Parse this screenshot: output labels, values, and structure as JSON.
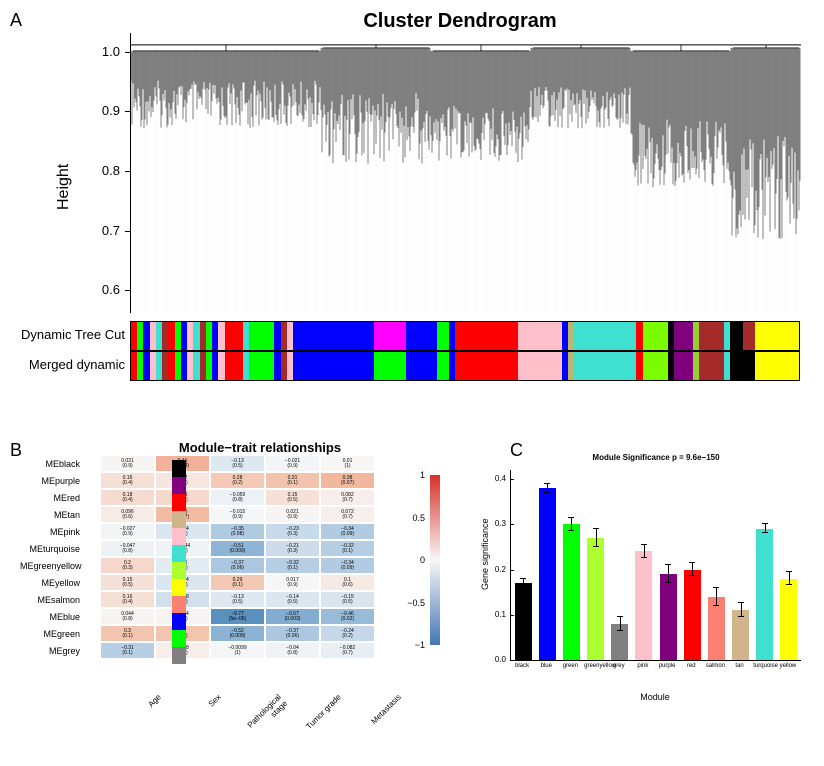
{
  "panelA": {
    "label": "A",
    "title": "Cluster Dendrogram",
    "y_axis_label": "Height",
    "y_ticks": [
      0.6,
      0.7,
      0.8,
      0.9,
      1.0
    ],
    "ylim": [
      0.55,
      1.02
    ],
    "band_labels": [
      "Dynamic Tree Cut",
      "Merged dynamic"
    ],
    "band1_segments": [
      {
        "w": 1,
        "c": "#ff0000"
      },
      {
        "w": 1,
        "c": "#00ff00"
      },
      {
        "w": 1,
        "c": "#0000ff"
      },
      {
        "w": 1,
        "c": "#ffc0cb"
      },
      {
        "w": 1,
        "c": "#40e0d0"
      },
      {
        "w": 1,
        "c": "#a52a2a"
      },
      {
        "w": 1,
        "c": "#ff0000"
      },
      {
        "w": 1,
        "c": "#00ff00"
      },
      {
        "w": 1,
        "c": "#0000ff"
      },
      {
        "w": 1,
        "c": "#ffc0cb"
      },
      {
        "w": 1,
        "c": "#40e0d0"
      },
      {
        "w": 1,
        "c": "#a52a2a"
      },
      {
        "w": 1,
        "c": "#00ff00"
      },
      {
        "w": 1,
        "c": "#0000ff"
      },
      {
        "w": 1,
        "c": "#ffc0cb"
      },
      {
        "w": 3,
        "c": "#ff0000"
      },
      {
        "w": 1,
        "c": "#40e0d0"
      },
      {
        "w": 4,
        "c": "#00ff00"
      },
      {
        "w": 1,
        "c": "#0000ff"
      },
      {
        "w": 1,
        "c": "#a52a2a"
      },
      {
        "w": 1,
        "c": "#ffc0cb"
      },
      {
        "w": 13,
        "c": "#0000ff"
      },
      {
        "w": 5,
        "c": "#ff00ff"
      },
      {
        "w": 5,
        "c": "#0000ff"
      },
      {
        "w": 2,
        "c": "#00ff00"
      },
      {
        "w": 1,
        "c": "#0000ff"
      },
      {
        "w": 10,
        "c": "#ff0000"
      },
      {
        "w": 7,
        "c": "#ffc0cb"
      },
      {
        "w": 1,
        "c": "#0000ff"
      },
      {
        "w": 1,
        "c": "#bdb76b"
      },
      {
        "w": 10,
        "c": "#40e0d0"
      },
      {
        "w": 1,
        "c": "#ff0000"
      },
      {
        "w": 4,
        "c": "#7cfc00"
      },
      {
        "w": 1,
        "c": "#000000"
      },
      {
        "w": 3,
        "c": "#800080"
      },
      {
        "w": 1,
        "c": "#9acd32"
      },
      {
        "w": 4,
        "c": "#a52a2a"
      },
      {
        "w": 1,
        "c": "#40e0d0"
      },
      {
        "w": 2,
        "c": "#000000"
      },
      {
        "w": 2,
        "c": "#a52a2a"
      },
      {
        "w": 7,
        "c": "#ffff00"
      }
    ],
    "band2_segments": [
      {
        "w": 1,
        "c": "#ff0000"
      },
      {
        "w": 1,
        "c": "#00ff00"
      },
      {
        "w": 1,
        "c": "#0000ff"
      },
      {
        "w": 1,
        "c": "#ffc0cb"
      },
      {
        "w": 1,
        "c": "#40e0d0"
      },
      {
        "w": 1,
        "c": "#a52a2a"
      },
      {
        "w": 1,
        "c": "#ff0000"
      },
      {
        "w": 1,
        "c": "#00ff00"
      },
      {
        "w": 1,
        "c": "#0000ff"
      },
      {
        "w": 1,
        "c": "#ffc0cb"
      },
      {
        "w": 1,
        "c": "#40e0d0"
      },
      {
        "w": 1,
        "c": "#a52a2a"
      },
      {
        "w": 1,
        "c": "#00ff00"
      },
      {
        "w": 1,
        "c": "#0000ff"
      },
      {
        "w": 1,
        "c": "#ffc0cb"
      },
      {
        "w": 3,
        "c": "#ff0000"
      },
      {
        "w": 1,
        "c": "#40e0d0"
      },
      {
        "w": 4,
        "c": "#00ff00"
      },
      {
        "w": 1,
        "c": "#0000ff"
      },
      {
        "w": 1,
        "c": "#a52a2a"
      },
      {
        "w": 1,
        "c": "#ffc0cb"
      },
      {
        "w": 13,
        "c": "#0000ff"
      },
      {
        "w": 5,
        "c": "#00ff00"
      },
      {
        "w": 5,
        "c": "#0000ff"
      },
      {
        "w": 2,
        "c": "#00ff00"
      },
      {
        "w": 1,
        "c": "#0000ff"
      },
      {
        "w": 10,
        "c": "#ff0000"
      },
      {
        "w": 7,
        "c": "#ffc0cb"
      },
      {
        "w": 1,
        "c": "#0000ff"
      },
      {
        "w": 1,
        "c": "#bdb76b"
      },
      {
        "w": 10,
        "c": "#40e0d0"
      },
      {
        "w": 1,
        "c": "#ff0000"
      },
      {
        "w": 4,
        "c": "#7cfc00"
      },
      {
        "w": 1,
        "c": "#000000"
      },
      {
        "w": 3,
        "c": "#800080"
      },
      {
        "w": 1,
        "c": "#9acd32"
      },
      {
        "w": 4,
        "c": "#a52a2a"
      },
      {
        "w": 1,
        "c": "#40e0d0"
      },
      {
        "w": 4,
        "c": "#000000"
      },
      {
        "w": 7,
        "c": "#ffff00"
      }
    ]
  },
  "panelB": {
    "label": "B",
    "title": "Module−trait relationships",
    "row_labels": [
      "MEblack",
      "MEpurple",
      "MEred",
      "MEtan",
      "MEpink",
      "MEturquoise",
      "MEgreenyellow",
      "MEyellow",
      "MEsalmon",
      "MEblue",
      "MEgreen",
      "MEgrey"
    ],
    "row_colors": [
      "#000000",
      "#800080",
      "#ff0000",
      "#d2b48c",
      "#ffc0cb",
      "#40e0d0",
      "#adff2f",
      "#ffff00",
      "#fa8072",
      "#0000ff",
      "#00ff00",
      "#808080"
    ],
    "col_labels": [
      "Age",
      "Sex",
      "Pathological stage",
      "Tumor grade",
      "Metastasis"
    ],
    "cells": [
      [
        {
          "v": "0.031",
          "p": "(0.9)",
          "c": "#f7f5f4"
        },
        {
          "v": "0.41",
          "p": "(0.04)",
          "c": "#f2b299"
        },
        {
          "v": "−0.13",
          "p": "(0.5)",
          "c": "#dde8f1"
        },
        {
          "v": "−0.021",
          "p": "(0.9)",
          "c": "#f3f5f6"
        },
        {
          "v": "0.01",
          "p": "(1)",
          "c": "#f7f6f5"
        }
      ],
      [
        {
          "v": "0.16",
          "p": "(0.4)",
          "c": "#f6dfd5"
        },
        {
          "v": "0.12",
          "p": "(0.6)",
          "c": "#f6e6df"
        },
        {
          "v": "0.28",
          "p": "(0.2)",
          "c": "#f4cab6"
        },
        {
          "v": "0.31",
          "p": "(0.1)",
          "c": "#f3c4ad"
        },
        {
          "v": "0.38",
          "p": "(0.07)",
          "c": "#f2b89d"
        }
      ],
      [
        {
          "v": "0.18",
          "p": "(0.4)",
          "c": "#f5dbd0"
        },
        {
          "v": "0.19",
          "p": "(0.4)",
          "c": "#f5d9cd"
        },
        {
          "v": "−0.059",
          "p": "(0.8)",
          "c": "#ecf1f5"
        },
        {
          "v": "0.15",
          "p": "(0.5)",
          "c": "#f6e1d8"
        },
        {
          "v": "0.082",
          "p": "(0.7)",
          "c": "#f7edea"
        }
      ],
      [
        {
          "v": "0.096",
          "p": "(0.6)",
          "c": "#f7ebe6"
        },
        {
          "v": "0.36",
          "p": "(0.07)",
          "c": "#f3bba1"
        },
        {
          "v": "−0.015",
          "p": "(0.9)",
          "c": "#f4f6f7"
        },
        {
          "v": "0.021",
          "p": "(0.9)",
          "c": "#f7f5f4"
        },
        {
          "v": "0.072",
          "p": "(0.7)",
          "c": "#f7efeb"
        }
      ],
      [
        {
          "v": "−0.027",
          "p": "(0.9)",
          "c": "#f2f5f6"
        },
        {
          "v": "−0.14",
          "p": "(0.5)",
          "c": "#dae6f0"
        },
        {
          "v": "−0.35",
          "p": "(0.08)",
          "c": "#afcbe2"
        },
        {
          "v": "−0.23",
          "p": "(0.3)",
          "c": "#c7dae9"
        },
        {
          "v": "−0.34",
          "p": "(0.09)",
          "c": "#b1cce2"
        }
      ],
      [
        {
          "v": "−0.047",
          "p": "(0.8)",
          "c": "#eef2f5"
        },
        {
          "v": "−0.044",
          "p": "(0.8)",
          "c": "#eff3f5"
        },
        {
          "v": "−0.51",
          "p": "(0.009)",
          "c": "#8eb5d5"
        },
        {
          "v": "−0.21",
          "p": "(0.3)",
          "c": "#ccdceb"
        },
        {
          "v": "−0.32",
          "p": "(0.1)",
          "c": "#b5cee4"
        }
      ],
      [
        {
          "v": "0.2",
          "p": "(0.3)",
          "c": "#f5d8cb"
        },
        {
          "v": "−0.1",
          "p": "(0.6)",
          "c": "#e2ebf2"
        },
        {
          "v": "−0.37",
          "p": "(0.06)",
          "c": "#abc8e0"
        },
        {
          "v": "−0.32",
          "p": "(0.1)",
          "c": "#b5cee4"
        },
        {
          "v": "−0.34",
          "p": "(0.09)",
          "c": "#b1cce2"
        }
      ],
      [
        {
          "v": "0.15",
          "p": "(0.5)",
          "c": "#f6e1d8"
        },
        {
          "v": "−0.14",
          "p": "(0.5)",
          "c": "#dae6f0"
        },
        {
          "v": "0.29",
          "p": "(0.1)",
          "c": "#f4c8b3"
        },
        {
          "v": "0.017",
          "p": "(0.9)",
          "c": "#f7f5f5"
        },
        {
          "v": "0.1",
          "p": "(0.6)",
          "c": "#f7eae5"
        }
      ],
      [
        {
          "v": "0.16",
          "p": "(0.4)",
          "c": "#f6dfd5"
        },
        {
          "v": "−0.18",
          "p": "(0.4)",
          "c": "#d2e0ed"
        },
        {
          "v": "−0.13",
          "p": "(0.5)",
          "c": "#dde8f1"
        },
        {
          "v": "−0.14",
          "p": "(0.5)",
          "c": "#dae6f0"
        },
        {
          "v": "−0.15",
          "p": "(0.5)",
          "c": "#d8e5ef"
        }
      ],
      [
        {
          "v": "0.044",
          "p": "(0.8)",
          "c": "#f7f3f2"
        },
        {
          "v": "0.044",
          "p": "(0.8)",
          "c": "#f7f3f2"
        },
        {
          "v": "−0.77",
          "p": "(5e−06)",
          "c": "#5a90be"
        },
        {
          "v": "−0.57",
          "p": "(0.003)",
          "c": "#82add0"
        },
        {
          "v": "−0.46",
          "p": "(0.02)",
          "c": "#98bbd9"
        }
      ],
      [
        {
          "v": "0.3",
          "p": "(0.1)",
          "c": "#f3c5af"
        },
        {
          "v": "0.3",
          "p": "(0.1)",
          "c": "#f3c5af"
        },
        {
          "v": "−0.52",
          "p": "(0.008)",
          "c": "#8cb3d4"
        },
        {
          "v": "−0.37",
          "p": "(0.06)",
          "c": "#abc8e0"
        },
        {
          "v": "−0.24",
          "p": "(0.2)",
          "c": "#c5d8e9"
        }
      ],
      [
        {
          "v": "−0.31",
          "p": "(0.1)",
          "c": "#b7cfe4"
        },
        {
          "v": "0.078",
          "p": "(0.7)",
          "c": "#f7eeea"
        },
        {
          "v": "−0.0099",
          "p": "(1)",
          "c": "#f5f6f7"
        },
        {
          "v": "−0.04",
          "p": "(0.8)",
          "c": "#eff3f5"
        },
        {
          "v": "−0.082",
          "p": "(0.7)",
          "c": "#e7eef4"
        }
      ]
    ],
    "colorbar_ticks": [
      "1",
      "0.5",
      "0",
      "−0.5",
      "−1"
    ]
  },
  "panelC": {
    "label": "C",
    "title": "Module Significance   p = 9.6e−150",
    "y_label": "Gene significance",
    "x_label": "Module",
    "y_ticks": [
      0.0,
      0.1,
      0.2,
      0.3,
      0.4
    ],
    "ylim": [
      0,
      0.42
    ],
    "bars": [
      {
        "name": "black",
        "value": 0.17,
        "err": 0.01,
        "color": "#000000"
      },
      {
        "name": "blue",
        "value": 0.38,
        "err": 0.01,
        "color": "#0000ff"
      },
      {
        "name": "green",
        "value": 0.3,
        "err": 0.015,
        "color": "#00ff00"
      },
      {
        "name": "greenyellow",
        "value": 0.27,
        "err": 0.02,
        "color": "#adff2f"
      },
      {
        "name": "grey",
        "value": 0.08,
        "err": 0.015,
        "color": "#808080"
      },
      {
        "name": "pink",
        "value": 0.24,
        "err": 0.015,
        "color": "#ffc0cb"
      },
      {
        "name": "purple",
        "value": 0.19,
        "err": 0.02,
        "color": "#800080"
      },
      {
        "name": "red",
        "value": 0.2,
        "err": 0.015,
        "color": "#ff0000"
      },
      {
        "name": "salmon",
        "value": 0.14,
        "err": 0.02,
        "color": "#fa8072"
      },
      {
        "name": "tan",
        "value": 0.11,
        "err": 0.015,
        "color": "#d2b48c"
      },
      {
        "name": "turquoise",
        "value": 0.29,
        "err": 0.01,
        "color": "#40e0d0"
      },
      {
        "name": "yellow",
        "value": 0.18,
        "err": 0.015,
        "color": "#ffff00"
      }
    ]
  }
}
